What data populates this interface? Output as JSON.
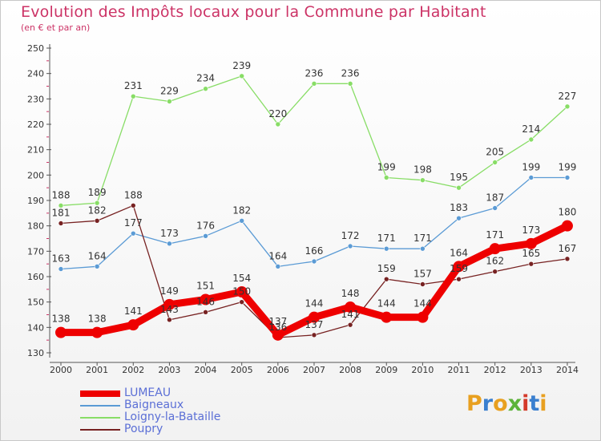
{
  "header": {
    "title": "Evolution des Impôts locaux pour la Commune par Habitant",
    "subtitle": "(en € et par an)"
  },
  "logo": {
    "text": "Proxiti",
    "letters": [
      "P",
      "r",
      "o",
      "x",
      "i",
      "t",
      "i"
    ],
    "colors": [
      "#e8a020",
      "#3a7fcf",
      "#e8a020",
      "#5db33a",
      "#d43a2a",
      "#3a7fcf",
      "#e8a020"
    ]
  },
  "colors": {
    "title": "#cc3366",
    "axis": "#555555",
    "grid": "#cccccc",
    "label": "#333333",
    "legend_text": "#5b6fd6"
  },
  "chart_data": {
    "type": "line",
    "title": "Evolution des Impôts locaux pour la Commune par Habitant",
    "subtitle": "(en € et par an)",
    "categories": [
      "2000",
      "2001",
      "2002",
      "2003",
      "2004",
      "2005",
      "2006",
      "2007",
      "2008",
      "2009",
      "2010",
      "2011",
      "2012",
      "2013",
      "2014"
    ],
    "ylim": [
      130,
      250
    ],
    "yticks": [
      130,
      140,
      150,
      160,
      170,
      180,
      190,
      200,
      210,
      220,
      230,
      240,
      250
    ],
    "grid": false,
    "legend_position": "bottom-left",
    "series": [
      {
        "name": "LUMEAU",
        "color": "#ee0000",
        "emphasis": true,
        "values": [
          138,
          138,
          141,
          149,
          151,
          154,
          137,
          144,
          148,
          144,
          144,
          164,
          171,
          173,
          180
        ]
      },
      {
        "name": "Baigneaux",
        "color": "#5b9bd5",
        "values": [
          163,
          164,
          177,
          173,
          176,
          182,
          164,
          166,
          172,
          171,
          171,
          183,
          187,
          199,
          199
        ]
      },
      {
        "name": "Loigny-la-Bataille",
        "color": "#88dd66",
        "values": [
          188,
          189,
          231,
          229,
          234,
          239,
          220,
          236,
          236,
          199,
          198,
          195,
          205,
          214,
          227
        ]
      },
      {
        "name": "Poupry",
        "color": "#772222",
        "values": [
          181,
          182,
          188,
          143,
          146,
          150,
          136,
          137,
          141,
          159,
          157,
          159,
          162,
          165,
          167
        ]
      }
    ]
  }
}
